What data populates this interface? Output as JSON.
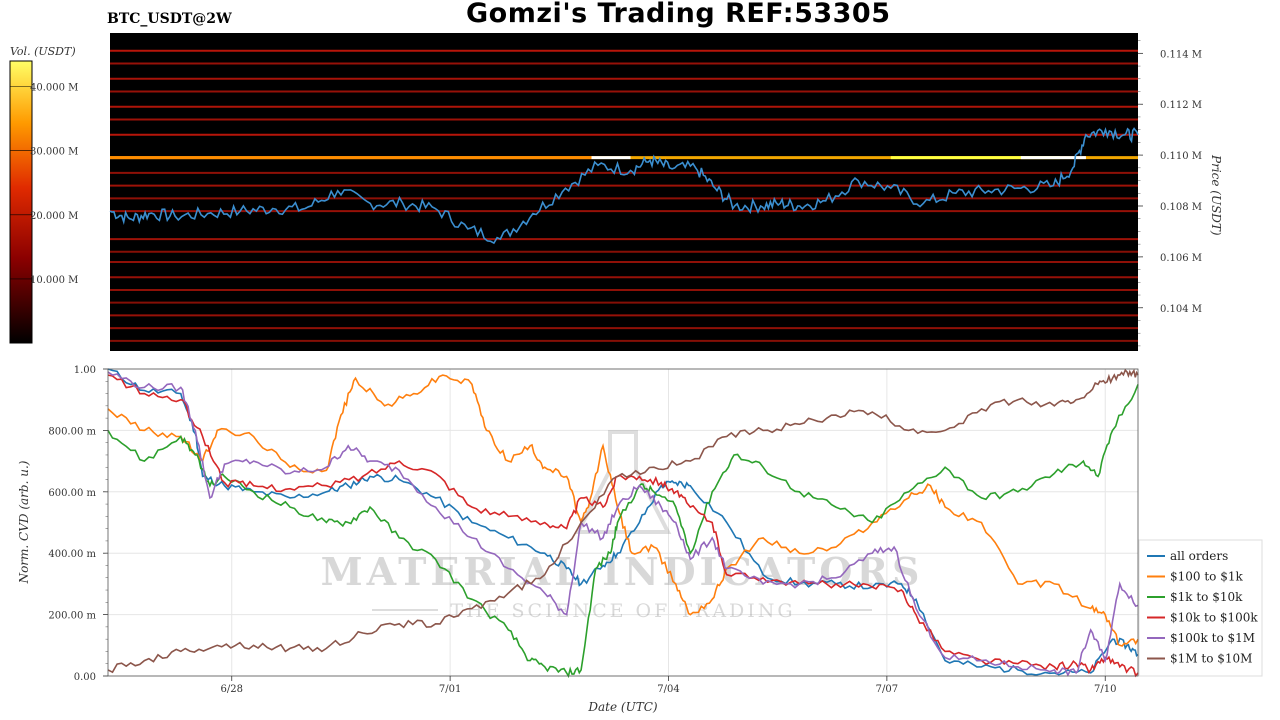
{
  "header": {
    "title": "Gomzi's Trading REF:53305",
    "symbol": "BTC_USDT@2W"
  },
  "colors": {
    "heatmap_bg": "#000000",
    "heat_line_red": "#c4160c",
    "heat_line_bright": "#ffb000",
    "heat_line_white": "#ffffff",
    "price_line": "#3b8fd0"
  },
  "watermark": {
    "name": "MATERIAL INDICATORS",
    "tagline": "THE SCIENCE OF TRADING"
  },
  "chart_data": [
    {
      "type": "heatmap",
      "title": "BTC_USDT@2W",
      "colorbar": {
        "label": "Vol. (USDT)",
        "ticks": [
          "10.000 M",
          "20.000 M",
          "30.000 M",
          "40.000 M"
        ],
        "tick_values": [
          10,
          20,
          30,
          40
        ],
        "range": [
          0,
          44
        ]
      },
      "y_axis": {
        "label": "Price (USDT)",
        "ticks": [
          "0.104 M",
          "0.106 M",
          "0.108 M",
          "0.110 M",
          "0.112 M",
          "0.114 M"
        ],
        "tick_values": [
          0.104,
          0.106,
          0.108,
          0.11,
          0.112,
          0.114
        ],
        "range": [
          0.1023,
          0.1148
        ]
      },
      "x_range": [
        0,
        15.8
      ],
      "price_series": {
        "x": [
          0,
          0.3,
          0.6,
          1.0,
          1.5,
          2.0,
          2.5,
          3.0,
          3.5,
          4.0,
          4.5,
          5.0,
          5.5,
          6.0,
          6.5,
          7.0,
          7.5,
          8.0,
          8.3,
          8.6,
          9.0,
          9.3,
          9.6,
          10.0,
          10.3,
          10.6,
          11.0,
          11.5,
          12.0,
          12.5,
          13.0,
          13.5,
          14.0,
          14.5,
          14.8,
          15.0,
          15.3,
          15.6,
          15.8
        ],
        "y": [
          0.1078,
          0.1075,
          0.1077,
          0.1076,
          0.1077,
          0.1078,
          0.1079,
          0.1079,
          0.1086,
          0.1081,
          0.1081,
          0.1079,
          0.1071,
          0.1067,
          0.1077,
          0.1087,
          0.1096,
          0.1094,
          0.1098,
          0.1095,
          0.1095,
          0.1087,
          0.108,
          0.108,
          0.1081,
          0.108,
          0.1082,
          0.109,
          0.1087,
          0.1081,
          0.1085,
          0.1086,
          0.1087,
          0.1088,
          0.1095,
          0.1108,
          0.111,
          0.1108,
          0.1108
        ]
      },
      "levels": [
        {
          "price": 0.1141,
          "vol": 12
        },
        {
          "price": 0.1136,
          "vol": 8
        },
        {
          "price": 0.113,
          "vol": 10
        },
        {
          "price": 0.1125,
          "vol": 8
        },
        {
          "price": 0.1119,
          "vol": 11
        },
        {
          "price": 0.1114,
          "vol": 9
        },
        {
          "price": 0.1108,
          "vol": 12
        },
        {
          "price": 0.1099,
          "vol": 38
        },
        {
          "price": 0.1093,
          "vol": 7
        },
        {
          "price": 0.1088,
          "vol": 9
        },
        {
          "price": 0.1083,
          "vol": 7
        },
        {
          "price": 0.1078,
          "vol": 8
        },
        {
          "price": 0.1067,
          "vol": 9
        },
        {
          "price": 0.1062,
          "vol": 6
        },
        {
          "price": 0.1058,
          "vol": 7
        },
        {
          "price": 0.1052,
          "vol": 8
        },
        {
          "price": 0.1047,
          "vol": 7
        },
        {
          "price": 0.1042,
          "vol": 6
        },
        {
          "price": 0.1037,
          "vol": 8
        },
        {
          "price": 0.1032,
          "vol": 7
        },
        {
          "price": 0.1027,
          "vol": 6
        }
      ]
    },
    {
      "type": "line",
      "xlabel": "Date (UTC)",
      "ylabel": "Norm. CVD (arb. u.)",
      "x_ticks": [
        "6/28",
        "7/01",
        "7/04",
        "7/07",
        "7/10"
      ],
      "x_tick_values": [
        1.7,
        4.7,
        7.7,
        10.7,
        13.7
      ],
      "x_range": [
        0,
        14.15
      ],
      "y_ticks": [
        "0.00",
        "200.00 m",
        "400.00 m",
        "600.00 m",
        "800.00 m",
        "1.00"
      ],
      "y_tick_values": [
        0,
        0.2,
        0.4,
        0.6,
        0.8,
        1.0
      ],
      "ylim": [
        0,
        1.0
      ],
      "grid": true,
      "legend_position": "right",
      "series": [
        {
          "name": "all orders",
          "color": "#1f77b4",
          "x": [
            0,
            0.5,
            1.0,
            1.2,
            1.3,
            1.6,
            2.0,
            2.5,
            3.0,
            3.3,
            3.6,
            4.0,
            4.5,
            5.0,
            5.5,
            6.0,
            6.3,
            6.5,
            6.8,
            7.0,
            7.3,
            7.6,
            7.8,
            8.0,
            8.5,
            9.0,
            9.5,
            10.0,
            10.5,
            10.9,
            11.1,
            11.5,
            12.0,
            12.5,
            13.0,
            13.5,
            13.8,
            14.0,
            14.15
          ],
          "y": [
            1.0,
            0.93,
            0.92,
            0.79,
            0.65,
            0.62,
            0.6,
            0.58,
            0.6,
            0.62,
            0.65,
            0.64,
            0.58,
            0.5,
            0.45,
            0.4,
            0.35,
            0.3,
            0.36,
            0.4,
            0.5,
            0.62,
            0.63,
            0.62,
            0.5,
            0.33,
            0.3,
            0.3,
            0.29,
            0.3,
            0.25,
            0.05,
            0.03,
            0.02,
            0.01,
            0.01,
            0.12,
            0.1,
            0.07
          ]
        },
        {
          "name": "$100 to $1k",
          "color": "#ff7f0e",
          "x": [
            0,
            0.5,
            1.0,
            1.3,
            1.5,
            2.0,
            2.5,
            3.0,
            3.2,
            3.4,
            3.8,
            4.2,
            4.6,
            5.0,
            5.2,
            5.5,
            5.8,
            6.0,
            6.3,
            6.5,
            6.6,
            6.8,
            7.0,
            7.2,
            7.5,
            7.8,
            8.0,
            8.3,
            8.5,
            9.0,
            9.5,
            10.0,
            10.5,
            11.0,
            11.3,
            11.5,
            12.0,
            12.5,
            13.0,
            13.5,
            13.7,
            13.9,
            14.15
          ],
          "y": [
            0.87,
            0.8,
            0.78,
            0.7,
            0.8,
            0.78,
            0.68,
            0.67,
            0.85,
            0.97,
            0.88,
            0.92,
            0.98,
            0.95,
            0.8,
            0.7,
            0.75,
            0.68,
            0.65,
            0.5,
            0.55,
            0.75,
            0.55,
            0.4,
            0.42,
            0.3,
            0.2,
            0.25,
            0.35,
            0.45,
            0.4,
            0.42,
            0.5,
            0.58,
            0.62,
            0.55,
            0.5,
            0.3,
            0.3,
            0.22,
            0.2,
            0.1,
            0.12
          ]
        },
        {
          "name": "$1k to $10k",
          "color": "#2ca02c",
          "x": [
            0,
            0.5,
            1.0,
            1.2,
            1.4,
            1.6,
            2.0,
            2.5,
            3.0,
            3.3,
            3.6,
            4.0,
            4.5,
            5.0,
            5.5,
            5.8,
            6.0,
            6.3,
            6.5,
            6.7,
            6.9,
            7.0,
            7.3,
            7.5,
            7.8,
            8.0,
            8.3,
            8.6,
            9.0,
            9.5,
            10.0,
            10.5,
            11.0,
            11.5,
            12.0,
            12.5,
            13.0,
            13.4,
            13.6,
            13.8,
            14.15
          ],
          "y": [
            0.8,
            0.7,
            0.78,
            0.72,
            0.62,
            0.65,
            0.6,
            0.55,
            0.5,
            0.5,
            0.55,
            0.45,
            0.38,
            0.25,
            0.15,
            0.05,
            0.03,
            0.01,
            0.02,
            0.35,
            0.4,
            0.5,
            0.62,
            0.6,
            0.55,
            0.4,
            0.6,
            0.72,
            0.68,
            0.6,
            0.55,
            0.5,
            0.6,
            0.68,
            0.58,
            0.6,
            0.66,
            0.7,
            0.65,
            0.8,
            0.95
          ]
        },
        {
          "name": "$10k to $100k",
          "color": "#d62728",
          "x": [
            0,
            0.5,
            1.0,
            1.3,
            1.6,
            2.0,
            2.5,
            3.0,
            3.5,
            4.0,
            4.5,
            5.0,
            5.5,
            6.0,
            6.3,
            6.5,
            6.8,
            7.0,
            7.3,
            7.6,
            7.8,
            8.0,
            8.3,
            8.5,
            9.0,
            9.5,
            10.0,
            10.5,
            10.9,
            11.1,
            11.5,
            12.0,
            12.5,
            13.0,
            13.3,
            13.5,
            13.7,
            13.9,
            14.15
          ],
          "y": [
            0.98,
            0.92,
            0.9,
            0.78,
            0.63,
            0.62,
            0.61,
            0.62,
            0.65,
            0.7,
            0.66,
            0.55,
            0.52,
            0.5,
            0.48,
            0.58,
            0.55,
            0.65,
            0.65,
            0.63,
            0.6,
            0.55,
            0.5,
            0.33,
            0.32,
            0.3,
            0.3,
            0.29,
            0.28,
            0.2,
            0.08,
            0.05,
            0.04,
            0.03,
            0.04,
            0.02,
            0.06,
            0.03,
            0.01
          ]
        },
        {
          "name": "$100k to $1M",
          "color": "#9467bd",
          "x": [
            0,
            0.5,
            1.0,
            1.2,
            1.4,
            1.6,
            2.0,
            2.5,
            3.0,
            3.3,
            3.6,
            4.0,
            4.5,
            5.0,
            5.5,
            6.0,
            6.3,
            6.5,
            6.8,
            7.0,
            7.3,
            7.6,
            7.8,
            8.0,
            8.3,
            8.5,
            9.0,
            9.5,
            10.0,
            10.5,
            10.8,
            11.1,
            11.5,
            12.0,
            12.5,
            13.0,
            13.3,
            13.5,
            13.7,
            13.9,
            14.15
          ],
          "y": [
            0.99,
            0.94,
            0.94,
            0.8,
            0.58,
            0.69,
            0.7,
            0.66,
            0.68,
            0.75,
            0.7,
            0.67,
            0.55,
            0.45,
            0.35,
            0.27,
            0.2,
            0.5,
            0.45,
            0.55,
            0.62,
            0.55,
            0.5,
            0.38,
            0.45,
            0.35,
            0.3,
            0.3,
            0.32,
            0.4,
            0.42,
            0.22,
            0.06,
            0.05,
            0.03,
            0.02,
            0.01,
            0.15,
            0.05,
            0.3,
            0.23
          ]
        },
        {
          "name": "$1M to $10M",
          "color": "#8c564b",
          "x": [
            0,
            0.5,
            1.0,
            1.5,
            2.0,
            2.5,
            3.0,
            3.5,
            4.0,
            4.5,
            5.0,
            5.5,
            6.0,
            6.5,
            7.0,
            7.5,
            8.0,
            8.5,
            9.0,
            9.5,
            10.0,
            10.5,
            11.0,
            11.5,
            12.0,
            12.5,
            13.0,
            13.3,
            13.6,
            13.8,
            14.0,
            14.15
          ],
          "y": [
            0.02,
            0.05,
            0.08,
            0.1,
            0.1,
            0.09,
            0.09,
            0.14,
            0.17,
            0.17,
            0.22,
            0.27,
            0.33,
            0.5,
            0.65,
            0.68,
            0.7,
            0.78,
            0.8,
            0.82,
            0.85,
            0.86,
            0.8,
            0.8,
            0.87,
            0.9,
            0.88,
            0.9,
            0.95,
            0.97,
            0.99,
            0.98
          ]
        }
      ]
    }
  ]
}
